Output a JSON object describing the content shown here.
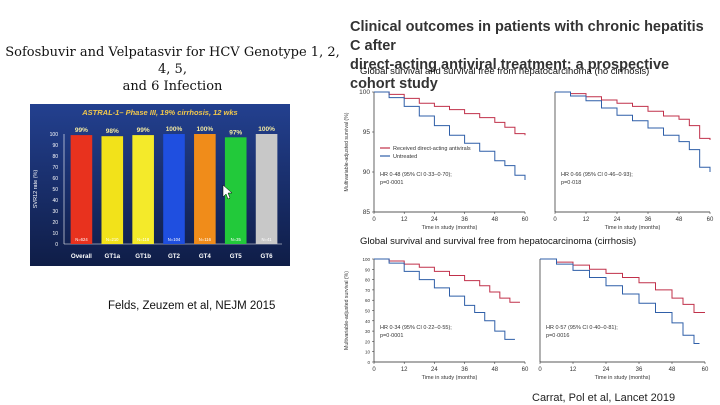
{
  "left_title_line1": "Sofosbuvir and Velpatasvir for HCV Genotype 1, 2, 4, 5,",
  "left_title_line2": "and 6 Infection",
  "right_title_line1": "Clinical outcomes in patients with chronic hepatitis C after",
  "right_title_line2": "direct-acting antiviral treatment: a prospective cohort study",
  "subtitle_top": "Global survival and survival free from hepatocarcinoma (no cirrhosis)",
  "subtitle_bottom": "Global survival and survival free from hepatocarcinoma (cirrhosis)",
  "citation_left": "Felds, Zeuzem et al, NEJM 2015",
  "citation_right": "Carrat, Pol et al, Lancet 2019",
  "colors": {
    "treated": "#c0304a",
    "untreated": "#2f5fa8",
    "bar_bg_top": "#1f3a8a",
    "bar_bg_bottom": "#0e1a40"
  },
  "chart_data": [
    {
      "type": "bar",
      "title": "ASTRAL-1– Phase III, 19% cirrhosis, 12 wks",
      "ylabel": "SVR12 rate (%)",
      "ylim": [
        0,
        100
      ],
      "yticks": [
        0,
        10,
        20,
        30,
        40,
        50,
        60,
        70,
        80,
        90,
        100
      ],
      "categories": [
        "Overall",
        "GT1a",
        "GT1b",
        "GT2",
        "GT4",
        "GT5",
        "GT6"
      ],
      "values": [
        99,
        98,
        99,
        100,
        100,
        97,
        100
      ],
      "value_labels": [
        "99%",
        "98%",
        "99%",
        "100%",
        "100%",
        "97%",
        "100%"
      ],
      "n_labels": [
        "N=624",
        "N=210",
        "N=118",
        "N=104",
        "N=116",
        "N=35",
        "N=41"
      ],
      "bar_colors": [
        "#e8321e",
        "#f2e21a",
        "#f4ea2a",
        "#1f4fe0",
        "#f08c1a",
        "#22c93a",
        "#c8c8c8"
      ]
    },
    {
      "type": "line",
      "panel": "no-cirrhosis-overall",
      "ylabel": "Multivariable-adjusted survival (%)",
      "xlabel": "Time in study (months)",
      "ylim": [
        85,
        100
      ],
      "yticks": [
        85,
        90,
        95,
        100
      ],
      "xticks": [
        0,
        12,
        24,
        36,
        48,
        60
      ],
      "legend": [
        "Received direct-acting antivirals",
        "Untreated"
      ],
      "annotation": [
        "HR 0·48 (95% CI 0·33–0·70);",
        "p=0·0001"
      ],
      "series": [
        {
          "name": "Received direct-acting antivirals",
          "x": [
            0,
            6,
            12,
            18,
            24,
            30,
            36,
            42,
            48,
            52,
            56,
            60
          ],
          "y": [
            100,
            99.7,
            99.2,
            98.6,
            98.2,
            97.8,
            97.3,
            96.8,
            96.2,
            95.6,
            94.8,
            94.6
          ]
        },
        {
          "name": "Untreated",
          "x": [
            0,
            6,
            12,
            18,
            24,
            30,
            36,
            42,
            48,
            52,
            56,
            60
          ],
          "y": [
            100,
            99.3,
            98.2,
            97.0,
            95.8,
            94.6,
            93.6,
            92.6,
            91.4,
            90.8,
            89.6,
            89.0
          ]
        }
      ]
    },
    {
      "type": "line",
      "panel": "no-cirrhosis-hcc-free",
      "xlabel": "Time in study (months)",
      "ylim": [
        85,
        100
      ],
      "xticks": [
        0,
        12,
        24,
        36,
        48,
        60
      ],
      "annotation": [
        "HR 0·66 (95% CI 0·46–0·93);",
        "p=0·018"
      ],
      "series": [
        {
          "name": "Received direct-acting antivirals",
          "x": [
            0,
            6,
            12,
            18,
            24,
            30,
            36,
            42,
            48,
            52,
            56,
            60
          ],
          "y": [
            100,
            99.8,
            99.4,
            99.0,
            98.6,
            98.2,
            97.6,
            97.0,
            96.6,
            95.8,
            94.2,
            94.0
          ]
        },
        {
          "name": "Untreated",
          "x": [
            0,
            6,
            12,
            18,
            24,
            30,
            36,
            42,
            48,
            52,
            56,
            60
          ],
          "y": [
            100,
            99.5,
            98.9,
            98.0,
            97.1,
            96.4,
            95.5,
            94.6,
            93.8,
            92.8,
            90.6,
            90.0
          ]
        }
      ]
    },
    {
      "type": "line",
      "panel": "cirrhosis-overall",
      "ylabel": "Multivariable-adjusted survival (%)",
      "xlabel": "Time in study (months)",
      "ylim": [
        0,
        100
      ],
      "yticks": [
        0,
        10,
        20,
        30,
        40,
        50,
        60,
        70,
        80,
        90,
        100
      ],
      "xticks": [
        0,
        12,
        24,
        36,
        48,
        60
      ],
      "annotation": [
        "HR 0·34 (95% CI 0·22–0·55);",
        "p=0·0001"
      ],
      "series": [
        {
          "name": "Received direct-acting antivirals",
          "x": [
            0,
            6,
            12,
            18,
            24,
            30,
            36,
            42,
            46,
            50,
            54,
            58
          ],
          "y": [
            100,
            98,
            95,
            92,
            88,
            84,
            79,
            74,
            68,
            62,
            58,
            58
          ]
        },
        {
          "name": "Untreated",
          "x": [
            0,
            6,
            12,
            18,
            24,
            30,
            36,
            40,
            44,
            48,
            52,
            56
          ],
          "y": [
            100,
            96,
            88,
            80,
            72,
            64,
            55,
            48,
            40,
            30,
            22,
            22
          ]
        }
      ]
    },
    {
      "type": "line",
      "panel": "cirrhosis-hcc-free",
      "xlabel": "Time in study (months)",
      "ylim": [
        0,
        100
      ],
      "xticks": [
        0,
        12,
        24,
        36,
        48,
        60
      ],
      "annotation": [
        "HR 0·57 (95% CI 0·40–0·81);",
        "p=0·0016"
      ],
      "series": [
        {
          "name": "Received direct-acting antivirals",
          "x": [
            0,
            6,
            12,
            18,
            24,
            30,
            36,
            42,
            48,
            52,
            56,
            60
          ],
          "y": [
            100,
            97,
            94,
            90,
            86,
            82,
            77,
            70,
            62,
            56,
            48,
            48
          ]
        },
        {
          "name": "Untreated",
          "x": [
            0,
            6,
            12,
            18,
            24,
            30,
            36,
            42,
            48,
            52,
            56,
            58
          ],
          "y": [
            100,
            95,
            89,
            82,
            74,
            66,
            57,
            48,
            38,
            26,
            18,
            18
          ]
        }
      ]
    }
  ]
}
